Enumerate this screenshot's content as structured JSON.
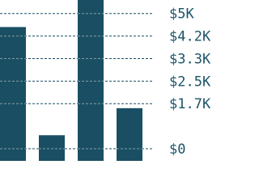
{
  "chart_data": {
    "type": "bar",
    "categories": [
      null,
      null,
      null,
      null
    ],
    "values": [
      4500,
      500,
      5500,
      1500
    ],
    "color": "#1a4f63",
    "ylim": [
      0,
      5500
    ],
    "yticks": [
      {
        "value": 0,
        "label": "$0"
      },
      {
        "value": 1667,
        "label": "$1.7K"
      },
      {
        "value": 2500,
        "label": "$2.5K"
      },
      {
        "value": 3333,
        "label": "$3.3K"
      },
      {
        "value": 4167,
        "label": "$4.2K"
      },
      {
        "value": 5000,
        "label": "$5K"
      }
    ],
    "grid": true
  }
}
